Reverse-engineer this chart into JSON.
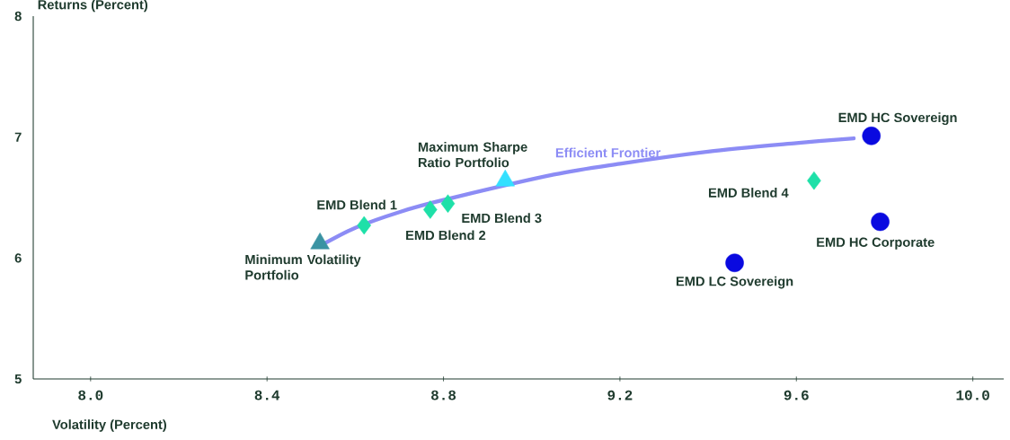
{
  "chart_data": {
    "type": "scatter",
    "xlabel": "Volatility (Percent)",
    "ylabel": "Returns (Percent)",
    "xlim": [
      7.87,
      10.07
    ],
    "ylim": [
      5,
      8
    ],
    "xticks": [
      {
        "value": 8.0,
        "label": "8.0"
      },
      {
        "value": 8.4,
        "label": "8.4"
      },
      {
        "value": 8.8,
        "label": "8.8"
      },
      {
        "value": 9.2,
        "label": "9.2"
      },
      {
        "value": 9.6,
        "label": "9.6"
      },
      {
        "value": 10.0,
        "label": "10.0"
      }
    ],
    "yticks": [
      5,
      6,
      7,
      8
    ],
    "series": [
      {
        "name": "Efficient Frontier",
        "type": "line",
        "color": "#8c8cf5",
        "marker": "none",
        "x": [
          8.53,
          8.6,
          8.7,
          8.8,
          9.05,
          9.2,
          9.4,
          9.6,
          9.73
        ],
        "values": [
          6.12,
          6.25,
          6.38,
          6.48,
          6.69,
          6.78,
          6.88,
          6.95,
          6.99
        ]
      },
      {
        "name": "Minimum Volatility Portfolio",
        "color": "#3a93a3",
        "marker": "triangle",
        "x": [
          8.52
        ],
        "values": [
          6.12
        ]
      },
      {
        "name": "EMD Blend 1",
        "color": "#1ee0a8",
        "marker": "diamond",
        "x": [
          8.62
        ],
        "values": [
          6.27
        ]
      },
      {
        "name": "EMD Blend 2",
        "color": "#1ee0a8",
        "marker": "diamond",
        "x": [
          8.77
        ],
        "values": [
          6.4
        ]
      },
      {
        "name": "EMD Blend 3",
        "color": "#1ee0a8",
        "marker": "diamond",
        "x": [
          8.81
        ],
        "values": [
          6.45
        ]
      },
      {
        "name": "Maximum Sharpe Ratio Portfolio",
        "color": "#33e0ff",
        "marker": "triangle",
        "x": [
          8.94
        ],
        "values": [
          6.64
        ]
      },
      {
        "name": "EMD Blend 4",
        "color": "#1ee0a8",
        "marker": "diamond",
        "x": [
          9.64
        ],
        "values": [
          6.64
        ]
      },
      {
        "name": "EMD HC Sovereign",
        "color": "#0a0ae0",
        "marker": "circle",
        "x": [
          9.77
        ],
        "values": [
          7.01
        ]
      },
      {
        "name": "EMD HC Corporate",
        "color": "#0a0ae0",
        "marker": "circle",
        "x": [
          9.79
        ],
        "values": [
          6.3
        ]
      },
      {
        "name": "EMD LC Sovereign",
        "color": "#0a0ae0",
        "marker": "circle",
        "x": [
          9.46
        ],
        "values": [
          5.96
        ]
      }
    ]
  }
}
